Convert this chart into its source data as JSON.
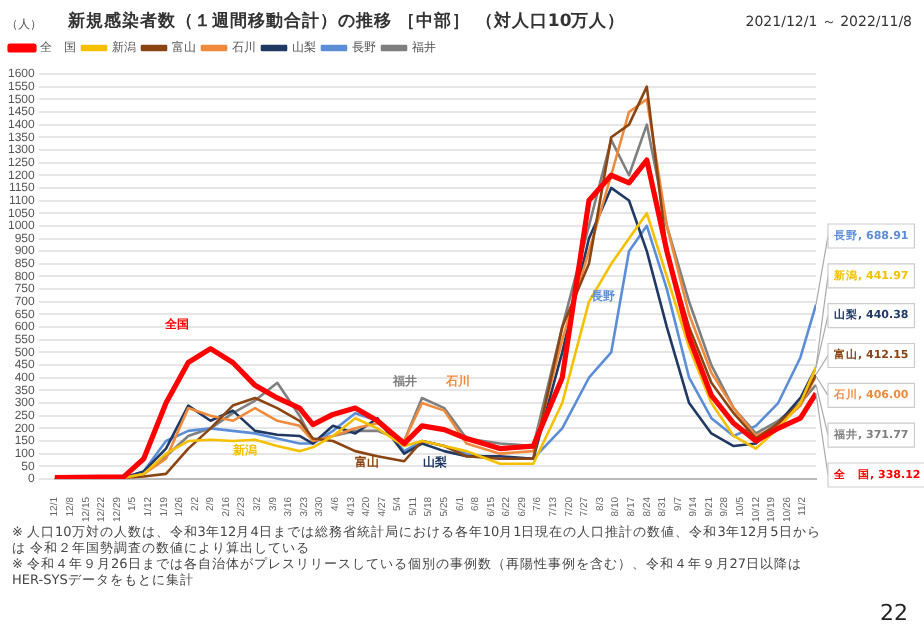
{
  "chart_data": {
    "type": "line",
    "title": "新規感染者数（１週間移動合計）の推移 ［中部］ （対人口10万人）",
    "subtitle": "2021/12/1 ～ 2022/11/8",
    "ylabel": "（人）",
    "x": [
      "2021-12-01",
      "2022-01-01",
      "2022-01-10",
      "2022-01-20",
      "2022-01-30",
      "2022-02-09",
      "2022-02-19",
      "2022-03-01",
      "2022-03-11",
      "2022-03-21",
      "2022-03-27",
      "2022-04-05",
      "2022-04-15",
      "2022-04-25",
      "2022-05-07",
      "2022-05-15",
      "2022-05-25",
      "2022-06-04",
      "2022-06-19",
      "2022-07-04",
      "2022-07-17",
      "2022-07-29",
      "2022-08-08",
      "2022-08-16",
      "2022-08-24",
      "2022-09-02",
      "2022-09-12",
      "2022-09-22",
      "2022-10-02",
      "2022-10-12",
      "2022-10-22",
      "2022-11-01",
      "2022-11-08"
    ],
    "series": [
      {
        "name": "全　国",
        "color": "#ff0000",
        "values": [
          5,
          8,
          80,
          300,
          460,
          515,
          460,
          370,
          320,
          280,
          215,
          255,
          280,
          230,
          140,
          210,
          195,
          160,
          120,
          130,
          400,
          1100,
          1200,
          1170,
          1260,
          900,
          560,
          330,
          220,
          150,
          200,
          240,
          338.12
        ],
        "value_labels": [
          null,
          null,
          null,
          null,
          null,
          null,
          null,
          null,
          null,
          null,
          null,
          null,
          null,
          null,
          null,
          null,
          null,
          null,
          null,
          null,
          null,
          null,
          null,
          null,
          null,
          null,
          null,
          null,
          null,
          null,
          null,
          null,
          "全　国, 338.12"
        ]
      },
      {
        "name": "新潟",
        "color": "#f5c000",
        "values": [
          5,
          5,
          20,
          100,
          150,
          155,
          150,
          155,
          130,
          110,
          125,
          170,
          240,
          200,
          130,
          150,
          130,
          110,
          60,
          60,
          300,
          700,
          850,
          950,
          1050,
          800,
          520,
          300,
          170,
          120,
          200,
          300,
          441.97
        ],
        "value_labels": [
          null,
          null,
          null,
          null,
          null,
          null,
          null,
          null,
          null,
          null,
          null,
          null,
          null,
          null,
          null,
          null,
          null,
          null,
          null,
          null,
          null,
          null,
          null,
          null,
          null,
          null,
          null,
          null,
          null,
          null,
          null,
          null,
          "新潟, 441.97"
        ]
      },
      {
        "name": "富山",
        "color": "#8b4513",
        "values": [
          5,
          5,
          10,
          20,
          120,
          200,
          290,
          320,
          280,
          230,
          160,
          150,
          110,
          90,
          70,
          150,
          130,
          90,
          80,
          80,
          600,
          850,
          1350,
          1400,
          1550,
          900,
          600,
          380,
          260,
          160,
          220,
          300,
          412.15
        ],
        "value_labels": [
          null,
          null,
          null,
          null,
          null,
          null,
          null,
          null,
          null,
          null,
          null,
          null,
          null,
          null,
          null,
          null,
          null,
          null,
          null,
          null,
          null,
          null,
          null,
          null,
          null,
          null,
          null,
          null,
          null,
          null,
          null,
          null,
          "富山, 412.15"
        ]
      },
      {
        "name": "石川",
        "color": "#f08a3c",
        "values": [
          5,
          5,
          20,
          80,
          280,
          250,
          230,
          280,
          230,
          210,
          150,
          170,
          200,
          220,
          150,
          300,
          270,
          140,
          100,
          110,
          550,
          900,
          1200,
          1450,
          1500,
          1000,
          650,
          420,
          280,
          170,
          210,
          290,
          406.0
        ],
        "value_labels": [
          null,
          null,
          null,
          null,
          null,
          null,
          null,
          null,
          null,
          null,
          null,
          null,
          null,
          null,
          null,
          null,
          null,
          null,
          null,
          null,
          null,
          null,
          null,
          null,
          null,
          null,
          null,
          null,
          null,
          null,
          null,
          null,
          "石川, 406.00"
        ]
      },
      {
        "name": "山梨",
        "color": "#1f3864",
        "values": [
          5,
          5,
          30,
          120,
          290,
          230,
          270,
          190,
          175,
          170,
          140,
          210,
          180,
          240,
          100,
          140,
          110,
          90,
          90,
          80,
          500,
          950,
          1150,
          1100,
          900,
          600,
          300,
          180,
          130,
          140,
          220,
          320,
          440.38
        ],
        "value_labels": [
          null,
          null,
          null,
          null,
          null,
          null,
          null,
          null,
          null,
          null,
          null,
          null,
          null,
          null,
          null,
          null,
          null,
          null,
          null,
          null,
          null,
          null,
          null,
          null,
          null,
          null,
          null,
          null,
          null,
          null,
          null,
          null,
          "山梨, 440.38"
        ]
      },
      {
        "name": "長野",
        "color": "#5b8ed6",
        "values": [
          5,
          5,
          30,
          150,
          190,
          200,
          190,
          180,
          160,
          140,
          140,
          190,
          260,
          230,
          110,
          150,
          130,
          100,
          80,
          80,
          200,
          400,
          500,
          900,
          1000,
          750,
          400,
          240,
          170,
          210,
          300,
          480,
          688.91
        ],
        "value_labels": [
          null,
          null,
          null,
          null,
          null,
          null,
          null,
          null,
          null,
          null,
          null,
          null,
          null,
          null,
          null,
          null,
          null,
          null,
          null,
          null,
          null,
          null,
          null,
          null,
          null,
          null,
          null,
          null,
          null,
          null,
          null,
          null,
          "長野, 688.91"
        ]
      },
      {
        "name": "福井",
        "color": "#7f7f7f",
        "values": [
          5,
          5,
          20,
          90,
          170,
          200,
          260,
          310,
          380,
          250,
          150,
          170,
          190,
          190,
          150,
          320,
          280,
          160,
          140,
          130,
          600,
          1000,
          1340,
          1200,
          1400,
          1000,
          700,
          450,
          280,
          180,
          230,
          300,
          371.77
        ],
        "value_labels": [
          null,
          null,
          null,
          null,
          null,
          null,
          null,
          null,
          null,
          null,
          null,
          null,
          null,
          null,
          null,
          null,
          null,
          null,
          null,
          null,
          null,
          null,
          null,
          null,
          null,
          null,
          null,
          null,
          null,
          null,
          null,
          null,
          "福井, 371.77"
        ]
      }
    ],
    "xlim": [
      "2021-12-01",
      "2022-11-08"
    ],
    "ylim": [
      0,
      1600
    ],
    "yticks": [
      0,
      50,
      100,
      150,
      200,
      250,
      300,
      350,
      400,
      450,
      500,
      550,
      600,
      650,
      700,
      750,
      800,
      850,
      900,
      950,
      1000,
      1050,
      1100,
      1150,
      1200,
      1250,
      1300,
      1350,
      1400,
      1450,
      1500,
      1550,
      1600
    ],
    "xticks": [
      {
        "value": "2021-12-01",
        "label": "12/1"
      },
      {
        "value": "2021-12-08",
        "label": "12/8"
      },
      {
        "value": "2021-12-15",
        "label": "12/15"
      },
      {
        "value": "2021-12-22",
        "label": "12/22"
      },
      {
        "value": "2021-12-29",
        "label": "12/29"
      },
      {
        "value": "2022-01-05",
        "label": "1/5"
      },
      {
        "value": "2022-01-12",
        "label": "1/12"
      },
      {
        "value": "2022-01-19",
        "label": "1/19"
      },
      {
        "value": "2022-01-26",
        "label": "1/26"
      },
      {
        "value": "2022-02-02",
        "label": "2/2"
      },
      {
        "value": "2022-02-09",
        "label": "2/9"
      },
      {
        "value": "2022-02-16",
        "label": "2/16"
      },
      {
        "value": "2022-02-23",
        "label": "2/23"
      },
      {
        "value": "2022-03-02",
        "label": "3/2"
      },
      {
        "value": "2022-03-09",
        "label": "3/9"
      },
      {
        "value": "2022-03-16",
        "label": "3/16"
      },
      {
        "value": "2022-03-23",
        "label": "3/23"
      },
      {
        "value": "2022-03-30",
        "label": "3/30"
      },
      {
        "value": "2022-04-06",
        "label": "4/6"
      },
      {
        "value": "2022-04-13",
        "label": "4/13"
      },
      {
        "value": "2022-04-20",
        "label": "4/20"
      },
      {
        "value": "2022-04-27",
        "label": "4/27"
      },
      {
        "value": "2022-05-04",
        "label": "5/4"
      },
      {
        "value": "2022-05-11",
        "label": "5/11"
      },
      {
        "value": "2022-05-18",
        "label": "5/18"
      },
      {
        "value": "2022-05-25",
        "label": "5/25"
      },
      {
        "value": "2022-06-01",
        "label": "6/1"
      },
      {
        "value": "2022-06-08",
        "label": "6/8"
      },
      {
        "value": "2022-06-15",
        "label": "6/15"
      },
      {
        "value": "2022-06-22",
        "label": "6/22"
      },
      {
        "value": "2022-06-29",
        "label": "6/29"
      },
      {
        "value": "2022-07-06",
        "label": "7/6"
      },
      {
        "value": "2022-07-13",
        "label": "7/13"
      },
      {
        "value": "2022-07-20",
        "label": "7/20"
      },
      {
        "value": "2022-07-27",
        "label": "7/27"
      },
      {
        "value": "2022-08-03",
        "label": "8/3"
      },
      {
        "value": "2022-08-10",
        "label": "8/10"
      },
      {
        "value": "2022-08-17",
        "label": "8/17"
      },
      {
        "value": "2022-08-24",
        "label": "8/24"
      },
      {
        "value": "2022-08-31",
        "label": "8/31"
      },
      {
        "value": "2022-09-07",
        "label": "9/7"
      },
      {
        "value": "2022-09-14",
        "label": "9/14"
      },
      {
        "value": "2022-09-21",
        "label": "9/21"
      },
      {
        "value": "2022-09-28",
        "label": "9/28"
      },
      {
        "value": "2022-10-05",
        "label": "10/5"
      },
      {
        "value": "2022-10-12",
        "label": "10/12"
      },
      {
        "value": "2022-10-19",
        "label": "10/19"
      },
      {
        "value": "2022-10-26",
        "label": "10/26"
      },
      {
        "value": "2022-11-02",
        "label": "11/2"
      }
    ],
    "grid": "y",
    "legend": "top left",
    "marker": "none",
    "line_style": "solid",
    "annotations": [
      "全国",
      "新潟",
      "富山",
      "石川",
      "山梨",
      "長野",
      "福井",
      "※ 人口10万対の人数は、令和3年12月4日までは総務省統計局における各年10月1日現在の人口推計の数値、令和3年12月5日からは 令和２年国勢調査の数値により算出している",
      "※ 令和４年９月26日までは各自治体がプレスリリースしている個別の事例数（再陽性事例を含む）、令和４年９月27日以降はHER-SYSデータをもとに集計",
      "22"
    ]
  }
}
